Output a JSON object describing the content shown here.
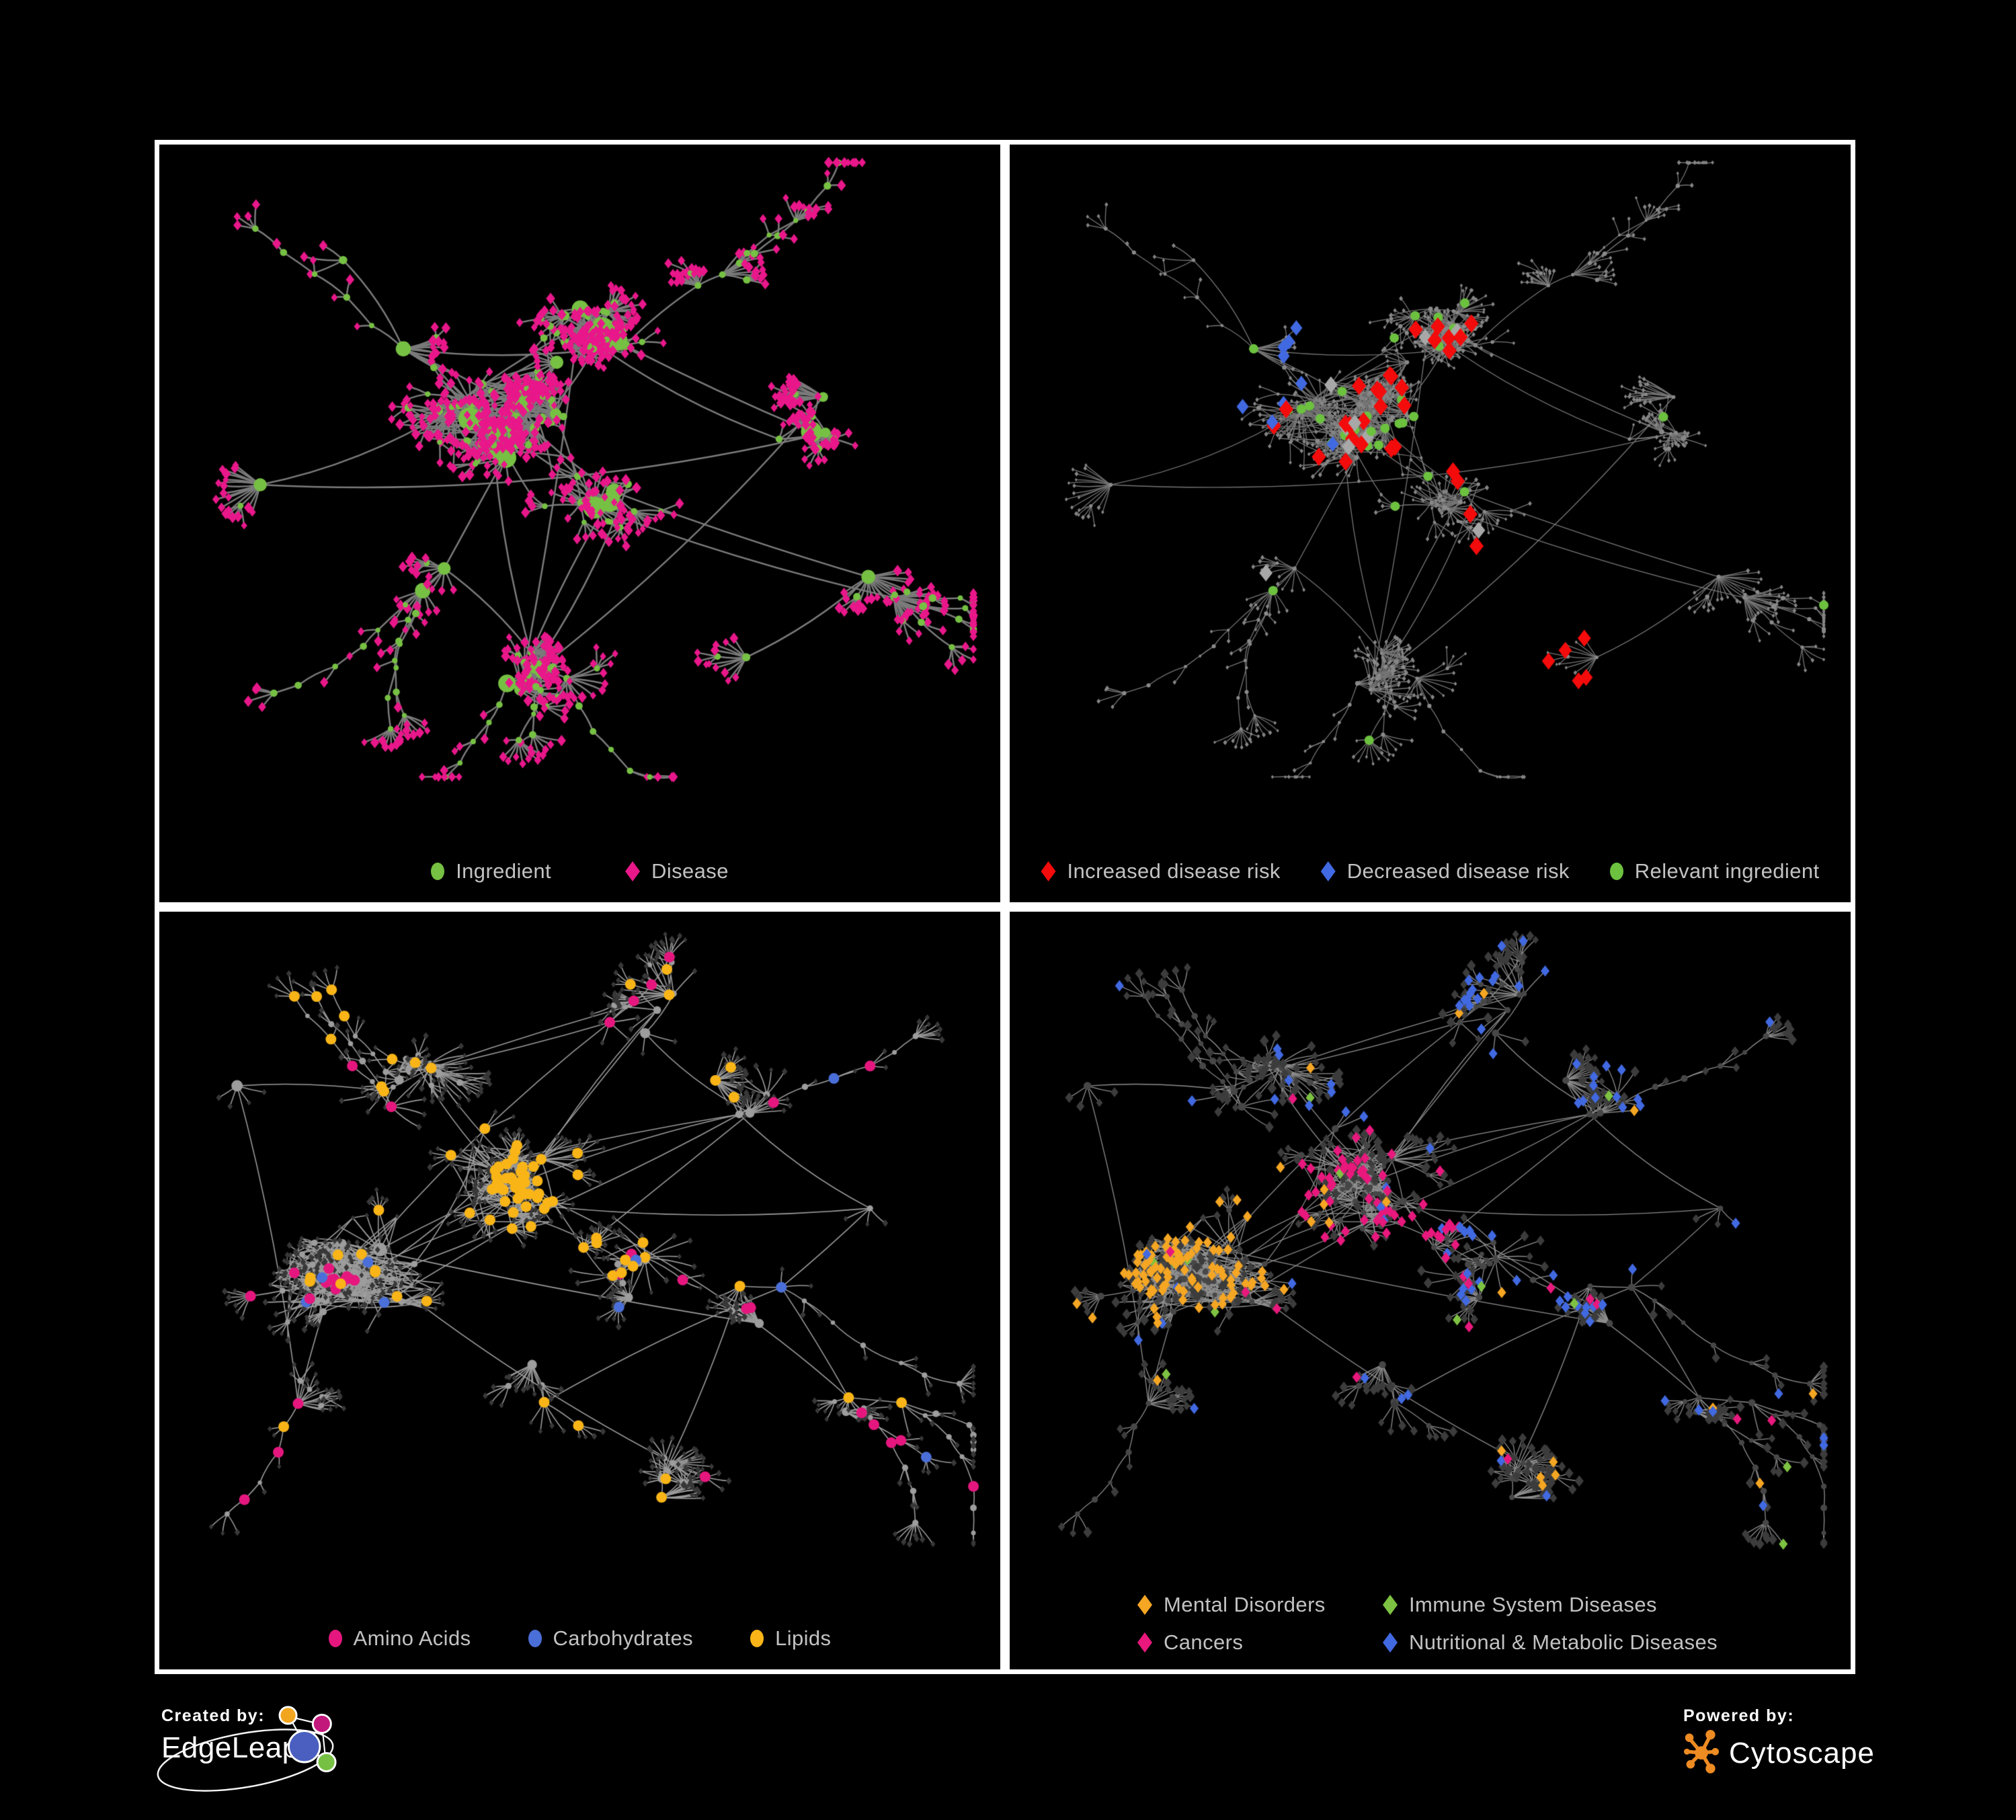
{
  "branding": {
    "created_by": {
      "label": "Created by:",
      "name": "EdgeLeap"
    },
    "powered_by": {
      "label": "Powered by:",
      "name": "Cytoscape"
    },
    "edgeleap_logo_colors": {
      "orange": "#F2A51F",
      "magenta": "#C2187C",
      "blue": "#4A5FC0",
      "green": "#76C043",
      "stroke": "#FFFFFF"
    },
    "cytoscape_logo_color": "#EE8B22"
  },
  "palette": {
    "background": "#000000",
    "panel_border": "#FFFFFF",
    "legend_text": "#C2C2C2"
  },
  "panels": [
    {
      "name": "ingredient-disease-network",
      "position": "top-left",
      "legend": {
        "columns": 1,
        "gap": 110,
        "items": [
          {
            "label": "Ingredient",
            "shape": "circle",
            "color": "#76C043"
          },
          {
            "label": "Disease",
            "shape": "diamond",
            "color": "#E8178A"
          }
        ]
      },
      "network": {
        "row": 0,
        "assign_seed": 1,
        "style": {
          "edge_color": "#7B7B7B",
          "edge_width": 2.5,
          "ingredient_color": "#76C043",
          "ingredient_r": [
            5,
            17
          ],
          "mid_r": 4.5,
          "disease_color": "#E8178A",
          "disease_size": 7
        },
        "rules": []
      }
    },
    {
      "name": "disease-risk-network",
      "position": "top-right",
      "legend": {
        "columns": 1,
        "gap": 60,
        "items": [
          {
            "label": "Increased disease risk",
            "shape": "diamond",
            "color": "#F40B0B"
          },
          {
            "label": "Decreased disease risk",
            "shape": "diamond",
            "color": "#4169E1"
          },
          {
            "label": "Relevant ingredient",
            "shape": "circle",
            "color": "#6CC13F"
          }
        ]
      },
      "network": {
        "row": 0,
        "assign_seed": 99,
        "style": {
          "edge_color": "#767676",
          "edge_width": 1.3,
          "ingredient_color": "#8A8A8A",
          "ingredient_r": [
            2.6,
            3.8
          ],
          "mid_r": 2.6,
          "disease_color": "#858585",
          "disease_size": 3.1
        },
        "rules": [
          {
            "type": "d",
            "shape": "diamond",
            "color": "#F40B0B",
            "size": 13,
            "count": 30,
            "anchors": [
              [
                0.44,
                0.33
              ],
              [
                0.5,
                0.41
              ],
              [
                0.37,
                0.44
              ]
            ],
            "spread": 0.1
          },
          {
            "type": "d",
            "shape": "diamond",
            "color": "#F40B0B",
            "size": 12,
            "count": 5,
            "anchors": [
              [
                0.68,
                0.77
              ]
            ],
            "spread": 0.07
          },
          {
            "type": "d",
            "shape": "diamond",
            "color": "#4169E1",
            "size": 11,
            "count": 9,
            "anchors": [
              [
                0.27,
                0.34
              ]
            ],
            "spread": 0.05
          },
          {
            "type": "d",
            "shape": "diamond",
            "color": "#4169E1",
            "size": 11,
            "count": 4,
            "anchors": [
              [
                0.87,
                0.25
              ]
            ],
            "spread": 0.04
          },
          {
            "type": "d",
            "shape": "diamond",
            "color": "#A8A8A8",
            "size": 12,
            "count": 9,
            "anchors": [
              [
                0.43,
                0.4
              ]
            ],
            "spread": 0.16
          },
          {
            "type": "i",
            "shape": "circle",
            "color": "#6CC13F",
            "size": 7,
            "count": 24,
            "anchors": [
              [
                0.4,
                0.36
              ]
            ],
            "spread": 0.14
          },
          {
            "type": "i",
            "shape": "circle",
            "color": "#6CC13F",
            "size": 7,
            "count": 8,
            "anchors": [
              [
                0.55,
                0.55
              ]
            ],
            "spread": 0.3
          }
        ]
      }
    },
    {
      "name": "macronutrients-network",
      "position": "bottom-left",
      "legend": {
        "columns": 1,
        "gap": 85,
        "items": [
          {
            "label": "Amino Acids",
            "shape": "circle",
            "color": "#E5177E"
          },
          {
            "label": "Carbohydrates",
            "shape": "circle",
            "color": "#4B6FD8"
          },
          {
            "label": "Lipids",
            "shape": "circle",
            "color": "#F9B517"
          }
        ]
      },
      "network": {
        "row": 1,
        "assign_seed": 55,
        "style": {
          "edge_color": "#9B9B9B",
          "edge_width": 1.6,
          "ingredient_color": "#9D9D9D",
          "ingredient_r": [
            4.5,
            11
          ],
          "mid_r": 4,
          "disease_color": "#383838",
          "disease_size": 4.5
        },
        "rules": [
          {
            "type": "i",
            "shape": "circle",
            "color": "#F9B517",
            "size": 8,
            "count": 55,
            "anchors": [
              [
                0.42,
                0.4
              ]
            ],
            "spread": 0.07
          },
          {
            "type": "i",
            "shape": "circle",
            "color": "#F9B517",
            "size": 8,
            "count": 35,
            "anchors": [
              [
                0.35,
                0.3
              ],
              [
                0.5,
                0.6
              ],
              [
                0.65,
                0.45
              ]
            ],
            "spread": 0.35
          },
          {
            "type": "i",
            "shape": "circle",
            "color": "#4B6FD8",
            "size": 8,
            "count": 26,
            "anchors": [
              [
                0.43,
                0.44
              ]
            ],
            "spread": 0.05
          },
          {
            "type": "i",
            "shape": "circle",
            "color": "#4B6FD8",
            "size": 8,
            "count": 8,
            "anchors": [
              [
                0.2,
                0.3
              ],
              [
                0.75,
                0.55
              ]
            ],
            "spread": 0.4
          },
          {
            "type": "i",
            "shape": "circle",
            "color": "#E5177E",
            "size": 8,
            "count": 34,
            "anchors": [
              [
                0.3,
                0.7
              ],
              [
                0.55,
                0.68
              ],
              [
                0.75,
                0.25
              ],
              [
                0.15,
                0.45
              ]
            ],
            "spread": 0.3
          }
        ]
      }
    },
    {
      "name": "disease-categories-network",
      "position": "bottom-right",
      "legend": {
        "columns": 2,
        "gap": 0,
        "items": [
          {
            "label": "Mental Disorders",
            "shape": "diamond",
            "color": "#F5A623"
          },
          {
            "label": "Immune System Diseases",
            "shape": "diamond",
            "color": "#7DC242"
          },
          {
            "label": "Cancers",
            "shape": "diamond",
            "color": "#E8187D"
          },
          {
            "label": "Nutritional & Metabolic Diseases",
            "shape": "diamond",
            "color": "#4169E1"
          }
        ]
      },
      "network": {
        "row": 1,
        "assign_seed": 77,
        "style": {
          "edge_color": "#8F8F8F",
          "edge_width": 1.3,
          "ingredient_color": "#474747",
          "ingredient_r": [
            4,
            7
          ],
          "mid_r": 4,
          "disease_color": "#3C3C3C",
          "disease_size": 7
        },
        "rules": [
          {
            "type": "d",
            "shape": "diamond",
            "color": "#F5A623",
            "size": 8,
            "count": 95,
            "anchors": [
              [
                0.21,
                0.54
              ]
            ],
            "spread": 0.075
          },
          {
            "type": "d",
            "shape": "diamond",
            "color": "#F5A623",
            "size": 8,
            "count": 18,
            "anchors": [
              [
                0.35,
                0.25
              ],
              [
                0.6,
                0.75
              ]
            ],
            "spread": 0.4
          },
          {
            "type": "d",
            "shape": "diamond",
            "color": "#E8187D",
            "size": 8,
            "count": 60,
            "anchors": [
              [
                0.44,
                0.48
              ]
            ],
            "spread": 0.08
          },
          {
            "type": "d",
            "shape": "diamond",
            "color": "#E8187D",
            "size": 8,
            "count": 14,
            "anchors": [
              [
                0.85,
                0.3
              ],
              [
                0.7,
                0.8
              ]
            ],
            "spread": 0.3
          },
          {
            "type": "d",
            "shape": "diamond",
            "color": "#4169E1",
            "size": 8,
            "count": 50,
            "anchors": [
              [
                0.6,
                0.55
              ],
              [
                0.78,
                0.22
              ],
              [
                0.85,
                0.42
              ],
              [
                0.68,
                0.08
              ]
            ],
            "spread": 0.1
          },
          {
            "type": "d",
            "shape": "diamond",
            "color": "#4169E1",
            "size": 8,
            "count": 40,
            "anchors": [
              [
                0.3,
                0.75
              ],
              [
                0.9,
                0.7
              ],
              [
                0.2,
                0.15
              ],
              [
                0.55,
                0.3
              ]
            ],
            "spread": 0.35
          },
          {
            "type": "d",
            "shape": "diamond",
            "color": "#7DC242",
            "size": 8,
            "count": 13,
            "anchors": [
              [
                0.45,
                0.45
              ]
            ],
            "spread": 0.5
          }
        ]
      }
    }
  ],
  "network_generation": {
    "rows": [
      {
        "seed": 1337,
        "hubs": 58,
        "leaf_max": 20,
        "mid_prob": 0.12,
        "chains": 14,
        "long_edges": 8,
        "clusters": [
          [
            0.4,
            0.4,
            0.085,
            0.26
          ],
          [
            0.53,
            0.26,
            0.045,
            0.1
          ],
          [
            0.27,
            0.33,
            0.06,
            0.09
          ],
          [
            0.3,
            0.62,
            0.06,
            0.09
          ],
          [
            0.55,
            0.55,
            0.06,
            0.08
          ],
          [
            0.67,
            0.22,
            0.06,
            0.07
          ],
          [
            0.8,
            0.42,
            0.05,
            0.06
          ],
          [
            0.22,
            0.18,
            0.05,
            0.06
          ],
          [
            0.43,
            0.82,
            0.045,
            0.05
          ],
          [
            0.66,
            0.78,
            0.04,
            0.04
          ],
          [
            0.87,
            0.68,
            0.04,
            0.03
          ],
          [
            0.13,
            0.5,
            0.05,
            0.04
          ],
          [
            0.6,
            0.08,
            0.04,
            0.03
          ]
        ],
        "clumps": [
          [
            0.53,
            0.265,
            0.03,
            22
          ],
          [
            0.4,
            0.43,
            0.026,
            14
          ],
          [
            0.47,
            0.4,
            0.02,
            8
          ]
        ],
        "webs": [
          [
            0.4,
            0.41,
            0.13,
            110
          ],
          [
            0.53,
            0.27,
            0.05,
            40
          ]
        ]
      },
      {
        "seed": 4242,
        "hubs": 64,
        "leaf_max": 17,
        "mid_prob": 0.13,
        "chains": 12,
        "long_edges": 8,
        "clusters": [
          [
            0.21,
            0.55,
            0.075,
            0.21
          ],
          [
            0.42,
            0.4,
            0.07,
            0.16
          ],
          [
            0.56,
            0.52,
            0.06,
            0.1
          ],
          [
            0.3,
            0.24,
            0.06,
            0.09
          ],
          [
            0.7,
            0.28,
            0.06,
            0.07
          ],
          [
            0.76,
            0.58,
            0.05,
            0.06
          ],
          [
            0.46,
            0.72,
            0.05,
            0.07
          ],
          [
            0.6,
            0.87,
            0.04,
            0.04
          ],
          [
            0.13,
            0.78,
            0.05,
            0.05
          ],
          [
            0.86,
            0.78,
            0.04,
            0.04
          ],
          [
            0.88,
            0.42,
            0.04,
            0.04
          ],
          [
            0.58,
            0.12,
            0.05,
            0.04
          ],
          [
            0.1,
            0.28,
            0.04,
            0.02
          ]
        ],
        "clumps": [
          [
            0.21,
            0.55,
            0.035,
            26
          ],
          [
            0.42,
            0.41,
            0.03,
            20
          ],
          [
            0.56,
            0.53,
            0.02,
            10
          ]
        ],
        "webs": [
          [
            0.21,
            0.55,
            0.12,
            140
          ],
          [
            0.42,
            0.41,
            0.09,
            70
          ]
        ]
      }
    ]
  }
}
